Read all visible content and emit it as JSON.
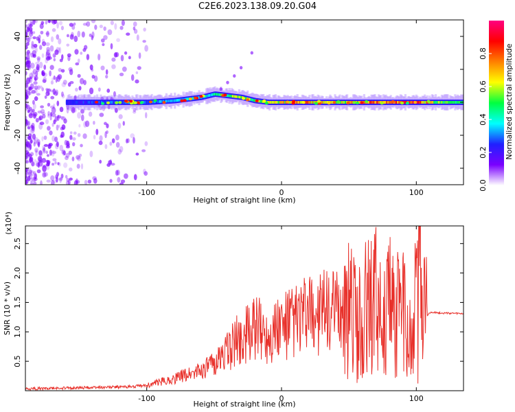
{
  "title": "C2E6.2023.138.09.20.G04",
  "colors": {
    "snr_line": "#e8302a",
    "axis": "#000000"
  },
  "chart_data": [
    {
      "type": "heatmap",
      "xlabel": "Height of straight line (km)",
      "ylabel": "Frequency (Hz)",
      "xlim": [
        -190,
        135
      ],
      "ylim": [
        -50,
        50
      ],
      "x_ticks": [
        -100,
        0,
        100
      ],
      "y_ticks": [
        -40,
        -20,
        0,
        20,
        40
      ],
      "colorbar": {
        "label": "Normalized spectral amplitude",
        "range": [
          0,
          1
        ],
        "ticks": [
          0.0,
          0.2,
          0.4,
          0.6,
          0.8
        ],
        "colormap": [
          "#ffffff",
          "#7a00ff",
          "#2020ff",
          "#00ffff",
          "#00ff40",
          "#ffff00",
          "#ff8000",
          "#ff0000",
          "#ff0080"
        ]
      },
      "ridge": {
        "x": [
          -150,
          -120,
          -100,
          -80,
          -60,
          -50,
          -40,
          -30,
          -20,
          -10,
          0,
          20,
          40,
          60,
          80,
          100,
          120,
          135
        ],
        "frequency_hz": [
          0,
          0,
          0,
          1,
          3,
          5,
          4,
          3,
          1,
          0,
          0,
          0,
          0,
          0,
          0,
          0,
          0,
          0
        ],
        "peak_amplitude": [
          0.25,
          0.3,
          0.3,
          0.35,
          0.4,
          0.45,
          0.55,
          0.6,
          0.55,
          0.6,
          0.7,
          0.75,
          0.6,
          0.75,
          0.8,
          0.85,
          0.5,
          0.45
        ]
      }
    },
    {
      "type": "line",
      "xlabel": "Height of straight line (km)",
      "ylabel": "SNR (10 * v/v)",
      "y_multiplier": "(x10⁴)",
      "xlim": [
        -190,
        135
      ],
      "ylim": [
        0,
        28000
      ],
      "x_ticks": [
        -100,
        0,
        100
      ],
      "y_ticks": [
        5000,
        10000,
        15000,
        20000,
        25000
      ],
      "y_tick_labels": [
        "0.5",
        "1.0",
        "1.5",
        "2.0",
        "2.5"
      ],
      "series": [
        {
          "x": [
            -190,
            -170,
            -150,
            -130,
            -110,
            -100,
            -90,
            -80,
            -70,
            -60,
            -50,
            -40,
            -30,
            -20,
            -10,
            0,
            10,
            20,
            30,
            40,
            50,
            55,
            60,
            65,
            70,
            75,
            80,
            85,
            90,
            95,
            100,
            103,
            105,
            110,
            120,
            135
          ],
          "y": [
            300,
            400,
            500,
            600,
            700,
            900,
            1500,
            2000,
            2800,
            3500,
            4500,
            7000,
            9000,
            10500,
            10000,
            11000,
            12000,
            13000,
            13300,
            13300,
            13300,
            12000,
            15000,
            14000,
            16000,
            12000,
            14000,
            12000,
            14000,
            11000,
            15000,
            20000,
            12000,
            13300,
            13200,
            13100
          ]
        }
      ]
    }
  ]
}
